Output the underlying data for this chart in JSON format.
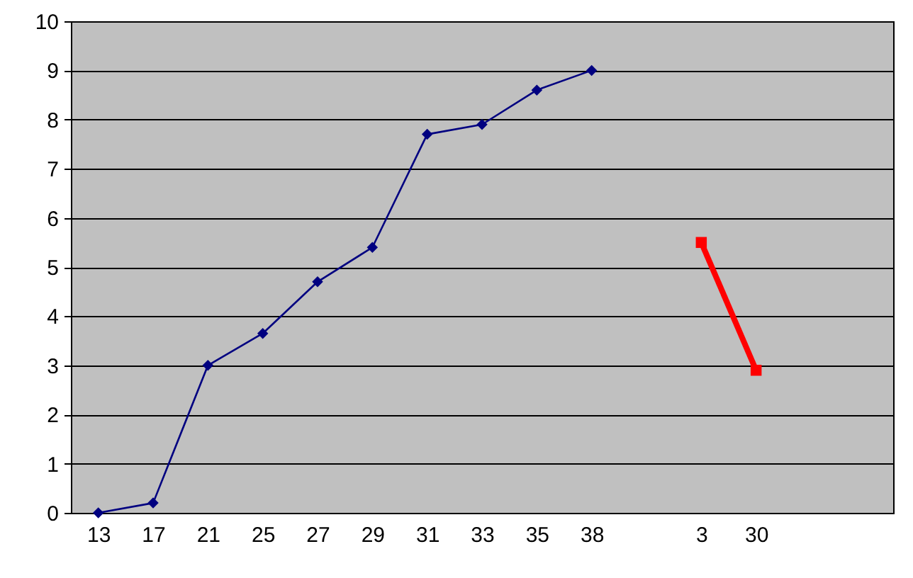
{
  "chart_data": {
    "type": "line",
    "categories": [
      "13",
      "17",
      "21",
      "25",
      "27",
      "29",
      "31",
      "33",
      "35",
      "38",
      null,
      "3",
      "30",
      null,
      null
    ],
    "series": [
      {
        "color": "#000080",
        "marker": "diamond",
        "values": [
          0,
          0.2,
          3,
          3.65,
          4.7,
          5.4,
          7.7,
          7.9,
          8.6,
          9,
          null,
          null,
          null,
          null,
          null
        ]
      },
      {
        "color": "#ff0000",
        "marker": "square",
        "values": [
          null,
          null,
          null,
          null,
          null,
          null,
          null,
          null,
          null,
          null,
          null,
          5.5,
          2.9,
          null,
          null
        ]
      }
    ],
    "ylim": [
      0,
      10
    ],
    "yticks": [
      0,
      1,
      2,
      3,
      4,
      5,
      6,
      7,
      8,
      9,
      10
    ],
    "grid": "y"
  }
}
